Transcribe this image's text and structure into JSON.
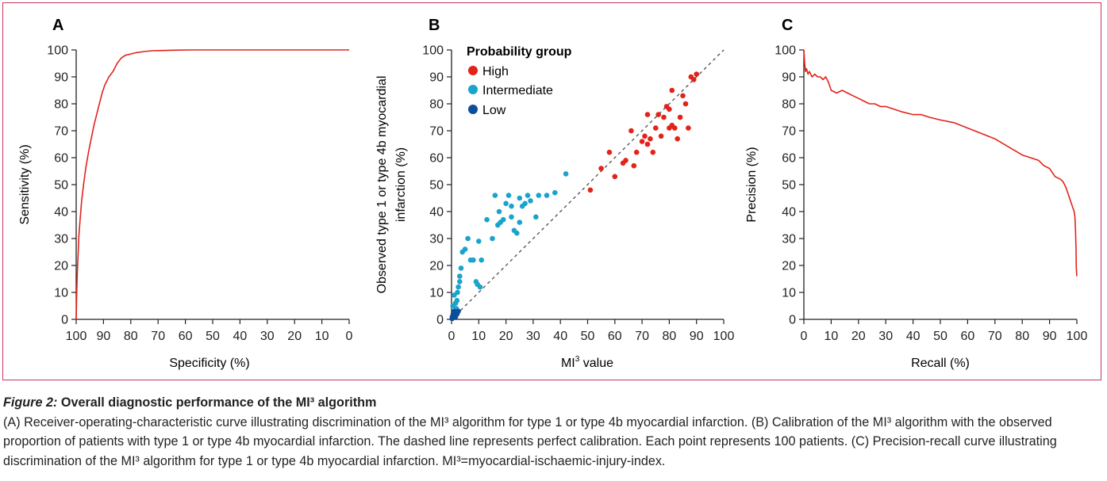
{
  "caption": {
    "label": "Figure 2:",
    "title": "Overall diagnostic performance of the MI³ algorithm",
    "body": "(A) Receiver-operating-characteristic curve illustrating discrimination of the MI³ algorithm for type 1 or type 4b myocardial infarction. (B) Calibration of the MI³ algorithm with the observed proportion of patients with type 1 or type 4b myocardial infarction. The dashed line represents perfect calibration. Each point represents 100 patients. (C) Precision-recall curve illustrating discrimination of the MI³ algorithm for type 1 or type 4b myocardial infarction. MI³=myocardial-ischaemic-injury-index."
  },
  "colors": {
    "frame": "#c8355d",
    "curve": "#e2231a",
    "high": "#e2231a",
    "intermediate": "#1aa3cc",
    "low": "#0b4f9c",
    "dash": "#4d4d4d"
  },
  "chart_data": [
    {
      "panel": "A",
      "type": "line",
      "title": "",
      "xlabel": "Specificity (%)",
      "ylabel": "Sensitivity (%)",
      "xlim": [
        100,
        0
      ],
      "ylim": [
        0,
        100
      ],
      "xticks": [
        "100",
        "90",
        "80",
        "70",
        "60",
        "50",
        "40",
        "30",
        "20",
        "10",
        "0"
      ],
      "yticks": [
        "0",
        "10",
        "20",
        "30",
        "40",
        "50",
        "60",
        "70",
        "80",
        "90",
        "100"
      ],
      "series": [
        {
          "name": "ROC curve",
          "x": [
            100,
            99.8,
            99.6,
            99.3,
            99,
            98.5,
            98,
            97.3,
            96.5,
            95.5,
            94.5,
            93.5,
            92.5,
            91.5,
            90.5,
            89.5,
            88,
            86.5,
            85,
            83.5,
            82,
            80,
            78,
            75,
            72,
            68,
            64,
            58,
            50,
            40,
            30,
            20,
            10,
            0
          ],
          "y": [
            0,
            10,
            17,
            24,
            31,
            38,
            44,
            50,
            56,
            62,
            67,
            72,
            76,
            80,
            84,
            87,
            90,
            92,
            95,
            97,
            98,
            98.5,
            99,
            99.4,
            99.7,
            99.8,
            99.9,
            100,
            100,
            100,
            100,
            100,
            100,
            100
          ]
        }
      ]
    },
    {
      "panel": "B",
      "type": "scatter",
      "title": "",
      "xlabel": "MI³ value",
      "ylabel": "Observed type 1 or type 4b myocardial infarction (%)",
      "xlim": [
        0,
        100
      ],
      "ylim": [
        0,
        100
      ],
      "xticks": [
        "0",
        "10",
        "20",
        "30",
        "40",
        "50",
        "60",
        "70",
        "80",
        "90",
        "100"
      ],
      "yticks": [
        "0",
        "10",
        "20",
        "30",
        "40",
        "50",
        "60",
        "70",
        "80",
        "90",
        "100"
      ],
      "legend": {
        "title": "Probability group",
        "position": "top-left",
        "entries": [
          "High",
          "Intermediate",
          "Low"
        ]
      },
      "reference_line": {
        "style": "dashed",
        "from": [
          0,
          0
        ],
        "to": [
          100,
          100
        ]
      },
      "series": [
        {
          "name": "High",
          "x": [
            51,
            55,
            58,
            60,
            63,
            64,
            66,
            67,
            68,
            70,
            71,
            72,
            72,
            73,
            74,
            75,
            76,
            77,
            78,
            79,
            80,
            80,
            81,
            81,
            82,
            83,
            84,
            85,
            86,
            87,
            88,
            89,
            90
          ],
          "y": [
            48,
            56,
            62,
            53,
            58,
            59,
            70,
            57,
            62,
            66,
            68,
            76,
            65,
            67,
            62,
            71,
            76,
            68,
            75,
            79,
            71,
            78,
            72,
            85,
            71,
            67,
            75,
            83,
            80,
            71,
            90,
            89,
            91
          ]
        },
        {
          "name": "Intermediate",
          "x": [
            0.5,
            1,
            1.5,
            1.8,
            2,
            2.2,
            2.5,
            3,
            3,
            3.5,
            4,
            5,
            6,
            7,
            8,
            9,
            9.5,
            10,
            10.5,
            11,
            13,
            15,
            16,
            17,
            17.5,
            18,
            19,
            20,
            21,
            22,
            22,
            23,
            24,
            25,
            25,
            26,
            27,
            28,
            29,
            31,
            32,
            35,
            38,
            42
          ],
          "y": [
            5,
            9,
            6,
            4,
            7,
            10,
            12,
            14,
            16,
            19,
            25,
            26,
            30,
            22,
            22,
            14,
            13,
            29,
            12,
            22,
            37,
            30,
            46,
            35,
            40,
            36,
            37,
            43,
            46,
            42,
            38,
            33,
            32,
            36,
            45,
            42,
            43,
            46,
            44,
            38,
            46,
            46,
            47,
            54
          ]
        },
        {
          "name": "Low",
          "x": [
            0.2,
            0.3,
            0.5,
            0.6,
            0.8,
            1,
            1.2,
            1.5,
            2,
            2.5
          ],
          "y": [
            0.3,
            1,
            0.5,
            2,
            1.5,
            3,
            2.5,
            1,
            2,
            3
          ]
        }
      ]
    },
    {
      "panel": "C",
      "type": "line",
      "title": "",
      "xlabel": "Recall (%)",
      "ylabel": "Precision (%)",
      "xlim": [
        0,
        100
      ],
      "ylim": [
        0,
        100
      ],
      "xticks": [
        "0",
        "10",
        "20",
        "30",
        "40",
        "50",
        "60",
        "70",
        "80",
        "90",
        "100"
      ],
      "yticks": [
        "0",
        "10",
        "20",
        "30",
        "40",
        "50",
        "60",
        "70",
        "80",
        "90",
        "100"
      ],
      "series": [
        {
          "name": "Precision-recall curve",
          "x": [
            0,
            0.3,
            0.6,
            1,
            1.5,
            2,
            3,
            4,
            5,
            6,
            7,
            8,
            9,
            10,
            12,
            14,
            16,
            18,
            20,
            22,
            24,
            26,
            28,
            30,
            33,
            36,
            40,
            43,
            46,
            50,
            55,
            60,
            65,
            70,
            75,
            80,
            83,
            86,
            88,
            90,
            92,
            94,
            95,
            96,
            97,
            98,
            99,
            99.3,
            99.5,
            99.7,
            99.8,
            100
          ],
          "y": [
            100,
            95,
            92,
            93,
            91,
            92,
            90,
            91,
            90,
            90,
            89,
            90,
            88,
            85,
            84,
            85,
            84,
            83,
            82,
            81,
            80,
            80,
            79,
            79,
            78,
            77,
            76,
            76,
            75,
            74,
            73,
            71,
            69,
            67,
            64,
            61,
            60,
            59,
            57,
            56,
            53,
            52,
            51,
            49,
            46,
            43,
            40,
            38,
            33,
            26,
            19,
            16
          ]
        }
      ]
    }
  ],
  "panels": [
    {
      "letter": "A",
      "xlabel": "Specificity (%)",
      "ylabel": "Sensitivity (%)"
    },
    {
      "letter": "B",
      "xlabel_pre": "MI",
      "xlabel_sup": "3",
      "xlabel_post": " value",
      "ylabel_line1": "Observed type 1 or type 4b myocardial",
      "ylabel_line2": "infarction (%)",
      "legend_title": "Probability group"
    },
    {
      "letter": "C",
      "xlabel": "Recall (%)",
      "ylabel": "Precision (%)"
    }
  ]
}
